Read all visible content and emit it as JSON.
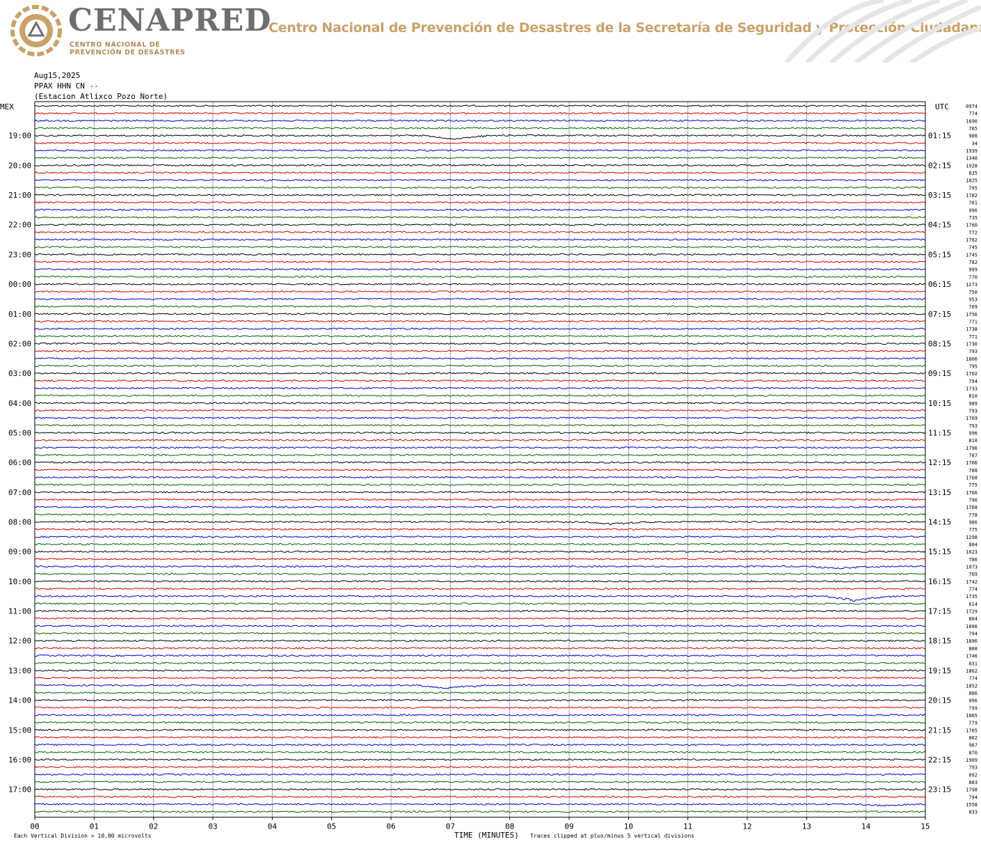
{
  "header": {
    "brand": "CENAPRED",
    "brand_sub_line1": "CENTRO NACIONAL DE",
    "brand_sub_line2": "PREVENCIÓN DE DESASTRES",
    "org_name": "Centro Nacional de Prevención de Desastres de la Secretaría de Seguridad y Protección Ciudadana"
  },
  "station": {
    "date": "Aug15,2025",
    "channel": "PPAX HHN CN --",
    "name": "(Estacion Atlixco Pozo Norte)"
  },
  "colors": {
    "trace": [
      "#000000",
      "#d40000",
      "#0000cc",
      "#006400"
    ],
    "grid_vertical": "#9aa0c8",
    "brand_gold": "#c9a16a",
    "brand_gray": "#6e6e6e"
  },
  "chart_data": {
    "type": "line",
    "title": "",
    "left_axis_label": "MEX",
    "right_axis_label": "UTC",
    "xlabel": "TIME (MINUTES)",
    "x_ticks": [
      "00",
      "01",
      "02",
      "03",
      "04",
      "05",
      "06",
      "07",
      "08",
      "09",
      "10",
      "11",
      "12",
      "13",
      "14",
      "15"
    ],
    "xlim": [
      0,
      15
    ],
    "traces_per_hour": 4,
    "trace_count": 96,
    "left_hour_labels": [
      "19:00",
      "20:00",
      "21:00",
      "22:00",
      "23:00",
      "00:00",
      "01:00",
      "02:00",
      "03:00",
      "04:00",
      "05:00",
      "06:00",
      "07:00",
      "08:00",
      "09:00",
      "10:00",
      "11:00",
      "12:00",
      "13:00",
      "14:00",
      "15:00",
      "16:00",
      "17:00"
    ],
    "right_hour_labels": [
      "01:15",
      "02:15",
      "03:15",
      "04:15",
      "05:15",
      "06:15",
      "07:15",
      "08:15",
      "09:15",
      "10:15",
      "11:15",
      "12:15",
      "13:15",
      "14:15",
      "15:15",
      "16:15",
      "17:15",
      "18:15",
      "19:15",
      "20:15",
      "21:15",
      "22:15",
      "23:15"
    ],
    "row_values": [
      "0974",
      "774",
      "1690",
      "765",
      "908",
      "34",
      "1939",
      "1340",
      "1928",
      "835",
      "1825",
      "795",
      "1782",
      "781",
      "996",
      "735",
      "1760",
      "772",
      "1762",
      "745",
      "1745",
      "782",
      "999",
      "770",
      "1273",
      "750",
      "953",
      "769",
      "1756",
      "771",
      "1738",
      "771",
      "1730",
      "793",
      "1806",
      "795",
      "1702",
      "794",
      "1733",
      "810",
      "989",
      "793",
      "1769",
      "793",
      "996",
      "810",
      "1796",
      "787",
      "1766",
      "788",
      "1768",
      "775",
      "1766",
      "796",
      "1768",
      "778",
      "986",
      "775",
      "1298",
      "804",
      "1023",
      "786",
      "1073",
      "769",
      "1742",
      "774",
      "1735",
      "614",
      "1729",
      "804",
      "1886",
      "794",
      "1896",
      "800",
      "1746",
      "831",
      "1862",
      "774",
      "1852",
      "806",
      "996",
      "799",
      "1865",
      "779",
      "1765",
      "862",
      "987",
      "870",
      "1909",
      "793",
      "892",
      "803",
      "1798",
      "794",
      "1558",
      "833"
    ],
    "events": [
      {
        "row": 4,
        "minute": 7.0,
        "amplitude": 5,
        "label": ""
      },
      {
        "row": 56,
        "minute": 9.7,
        "amplitude": 3,
        "label": ""
      },
      {
        "row": 62,
        "minute": 13.5,
        "amplitude": 3,
        "label": ""
      },
      {
        "row": 66,
        "minute": 13.8,
        "amplitude": 6,
        "label": ""
      },
      {
        "row": 78,
        "minute": 6.9,
        "amplitude": 4,
        "label": ""
      },
      {
        "row": 94,
        "minute": 14.3,
        "amplitude": 2,
        "label": ""
      }
    ]
  },
  "footer": {
    "scale_note": "Each Vertical Division =   10.00 microvolts",
    "clip_note": "Traces clipped at plus/minus 5 vertical divisions"
  }
}
